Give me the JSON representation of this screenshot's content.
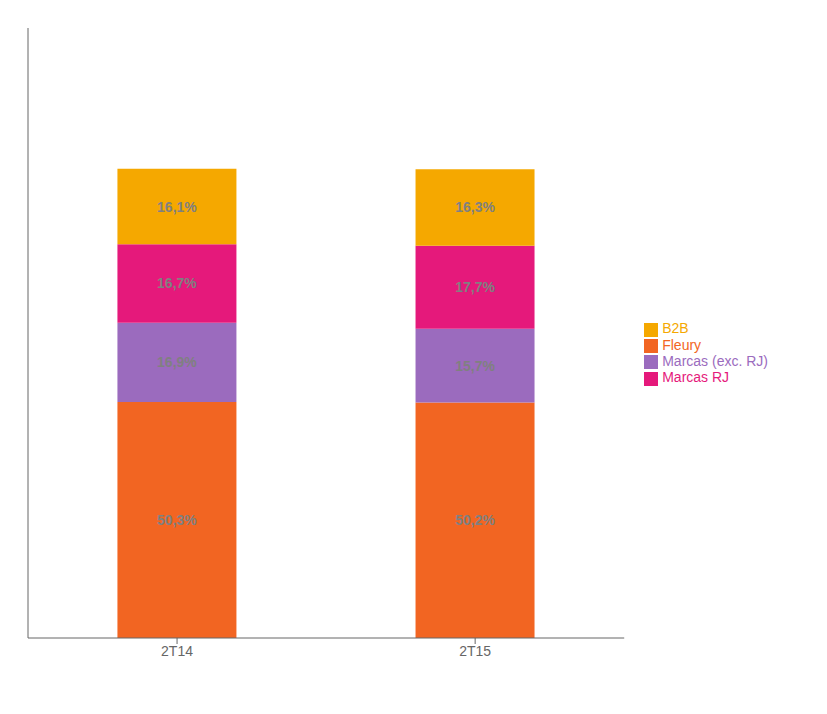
{
  "chart_data": {
    "type": "bar",
    "stacked": true,
    "categories": [
      "2T14",
      "2T15"
    ],
    "series": [
      {
        "name": "Fleury",
        "color": "#F26522",
        "values": [
          50.3,
          50.2
        ],
        "value_labels": [
          "50,3%",
          "50,2%"
        ]
      },
      {
        "name": "Marcas (exc. RJ)",
        "color": "#9B6BBE",
        "values": [
          16.9,
          15.7
        ],
        "value_labels": [
          "16,9%",
          "15,7%"
        ]
      },
      {
        "name": "Marcas RJ",
        "color": "#E5197B",
        "values": [
          16.7,
          17.7
        ],
        "value_labels": [
          "16,7%",
          "17,7%"
        ]
      },
      {
        "name": "B2B",
        "color": "#F5A800",
        "values": [
          16.1,
          16.3
        ],
        "value_labels": [
          "16,1%",
          "16,3%"
        ]
      }
    ],
    "ylim": [
      0,
      130
    ],
    "data_labels": true,
    "tick_labels": "x",
    "legend": "right",
    "grid": false
  }
}
